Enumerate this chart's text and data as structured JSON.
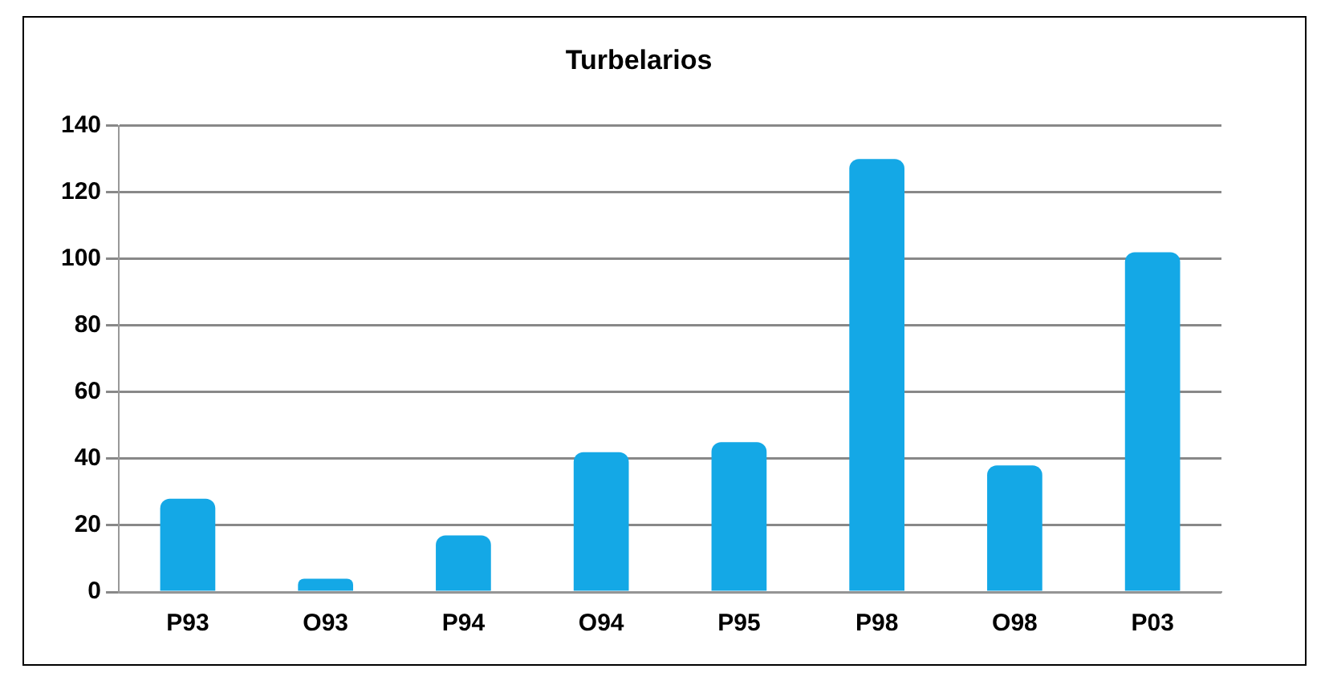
{
  "chart_data": {
    "type": "bar",
    "title": "Turbelarios",
    "categories": [
      "P93",
      "O93",
      "P94",
      "O94",
      "P95",
      "P98",
      "O98",
      "P03"
    ],
    "values": [
      28,
      4,
      17,
      42,
      45,
      130,
      38,
      102
    ],
    "color": "#14a8e6",
    "ylim": [
      0,
      140
    ],
    "yticks": [
      0,
      20,
      40,
      60,
      80,
      100,
      120,
      140
    ],
    "grid": "y",
    "legend": false
  }
}
